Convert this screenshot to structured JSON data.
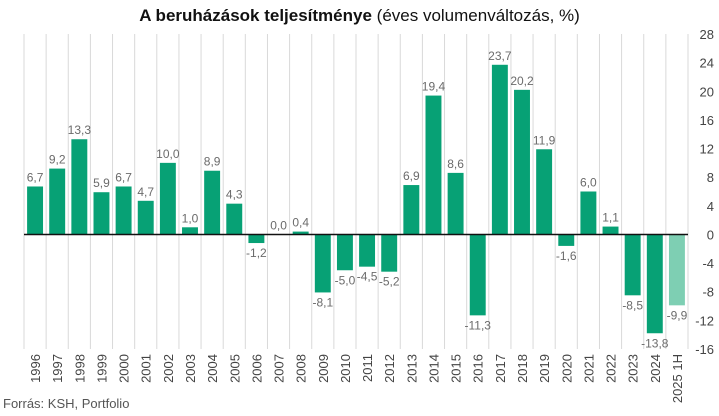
{
  "title_bold": "A beruházások teljesítménye",
  "title_rest": " (éves volumenváltozás, %)",
  "source": "Forrás: KSH, Portfolio",
  "colors": {
    "bar": "#07a175",
    "bar_partial": "#7ecfb3",
    "grid": "#d9d9d9",
    "label": "#6b6b6b",
    "axis_text": "#444444"
  },
  "chart_data": {
    "type": "bar",
    "title": "A beruházások teljesítménye (éves volumenváltozás, %)",
    "xlabel": "",
    "ylabel": "",
    "ylim": [
      -16,
      28
    ],
    "yticks": [
      -16,
      -12,
      -8,
      -4,
      0,
      4,
      8,
      12,
      16,
      20,
      24,
      28
    ],
    "grid": "vertical",
    "categories": [
      "1996",
      "1997",
      "1998",
      "1999",
      "2000",
      "2001",
      "2002",
      "2003",
      "2004",
      "2005",
      "2006",
      "2007",
      "2008",
      "2009",
      "2010",
      "2011",
      "2012",
      "2013",
      "2014",
      "2015",
      "2016",
      "2017",
      "2018",
      "2019",
      "2020",
      "2021",
      "2022",
      "2023",
      "2024",
      "2025 1H"
    ],
    "values": [
      6.7,
      9.2,
      13.3,
      5.9,
      6.7,
      4.7,
      10.0,
      1.0,
      8.9,
      4.3,
      -1.2,
      0.0,
      0.4,
      -8.1,
      -5.0,
      -4.5,
      -5.2,
      6.9,
      19.4,
      8.6,
      -11.3,
      23.7,
      20.2,
      11.9,
      -1.6,
      6.0,
      1.1,
      -8.5,
      -13.8,
      -9.9
    ],
    "data_labels": [
      "6,7",
      "9,2",
      "13,3",
      "5,9",
      "6,7",
      "4,7",
      "10,0",
      "1,0",
      "8,9",
      "4,3",
      "-1,2",
      "0,0",
      "0,4",
      "-8,1",
      "-5,0",
      "-4,5",
      "-5,2",
      "6,9",
      "19,4",
      "8,6",
      "-11,3",
      "23,7",
      "20,2",
      "11,9",
      "-1,6",
      "6,0",
      "1,1",
      "-8,5",
      "-13,8",
      "-9,9"
    ],
    "highlight_last": true
  }
}
